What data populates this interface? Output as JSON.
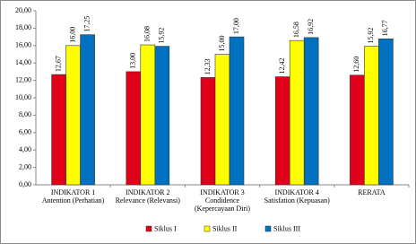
{
  "chart_data": {
    "type": "bar",
    "categories": [
      "INDIKATOR 1\nAntention (Perhatian)",
      "INDIKATOR 2\nRelevance (Relevansi)",
      "INDIKATOR 3\nCondidence\n(Kepercayaan Diri)",
      "INDIKATOR 4\nSatisfation (Kepuasan)",
      "RERATA"
    ],
    "series": [
      {
        "name": "Siklus I",
        "color": "#e0001a",
        "values": [
          12.67,
          13.0,
          12.33,
          12.42,
          12.6
        ],
        "value_labels": [
          "12,67",
          "13,00",
          "12,33",
          "12,42",
          "12,60"
        ]
      },
      {
        "name": "Siklus II",
        "color": "#ffff00",
        "values": [
          16.0,
          16.08,
          15.0,
          16.58,
          15.92
        ],
        "value_labels": [
          "16,00",
          "16,08",
          "15,00",
          "16,58",
          "15,92"
        ]
      },
      {
        "name": "Siklus III",
        "color": "#0070c0",
        "values": [
          17.25,
          15.92,
          17.0,
          16.92,
          16.77
        ],
        "value_labels": [
          "17,25",
          "15,92",
          "17,00",
          "16,92",
          "16,77"
        ]
      }
    ],
    "ylim": [
      0,
      20
    ],
    "yticks": [
      {
        "value": 0,
        "label": "0,00"
      },
      {
        "value": 2,
        "label": "2,00"
      },
      {
        "value": 4,
        "label": "4,00"
      },
      {
        "value": 6,
        "label": "6,00"
      },
      {
        "value": 8,
        "label": "8,00"
      },
      {
        "value": 10,
        "label": "10,00"
      },
      {
        "value": 12,
        "label": "12,00"
      },
      {
        "value": 14,
        "label": "14,00"
      },
      {
        "value": 16,
        "label": "16,00"
      },
      {
        "value": 18,
        "label": "18,00"
      },
      {
        "value": 20,
        "label": "20,00"
      }
    ],
    "grid": false,
    "legend": "bottom"
  }
}
